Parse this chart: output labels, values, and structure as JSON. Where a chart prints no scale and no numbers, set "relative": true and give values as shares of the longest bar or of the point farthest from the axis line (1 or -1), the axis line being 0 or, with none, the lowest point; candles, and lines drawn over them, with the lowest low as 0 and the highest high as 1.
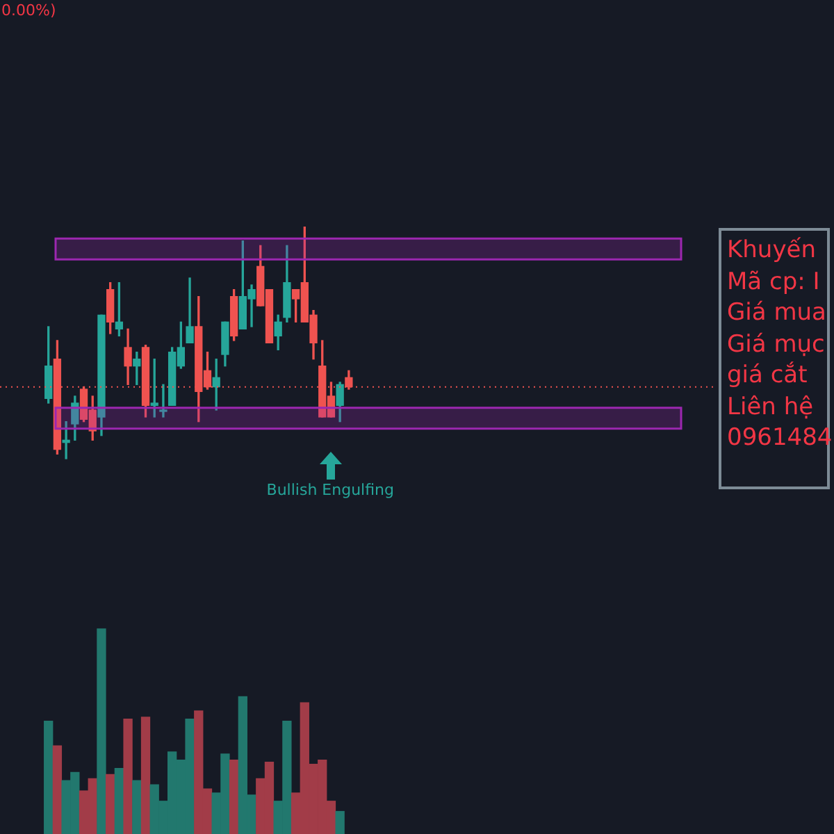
{
  "chart_data": [
    {
      "type": "candlestick",
      "relative": true,
      "categories": [
        null,
        null,
        null,
        null,
        null,
        null,
        null,
        null,
        null,
        null,
        null,
        null,
        null,
        null,
        null,
        null,
        null,
        null,
        null,
        null,
        null,
        null,
        null,
        null,
        null,
        null,
        null,
        null,
        null,
        null,
        null,
        null,
        null,
        null,
        null
      ],
      "ohlc": [
        [
          0.26,
          0.57,
          0.24,
          0.4
        ],
        [
          0.43,
          0.51,
          0.02,
          0.04
        ],
        [
          0.07,
          0.16,
          0,
          0.08
        ],
        [
          0.15,
          0.27,
          0.08,
          0.24
        ],
        [
          0.3,
          0.31,
          0.16,
          0.17
        ],
        [
          0.21,
          0.27,
          0.08,
          0.12
        ],
        [
          0.18,
          0.62,
          0.1,
          0.62
        ],
        [
          0.73,
          0.76,
          0.54,
          0.59
        ],
        [
          0.56,
          0.76,
          0.53,
          0.59
        ],
        [
          0.48,
          0.56,
          0.32,
          0.4
        ],
        [
          0.4,
          0.46,
          0.32,
          0.43
        ],
        [
          0.48,
          0.49,
          0.18,
          0.23
        ],
        [
          0.23,
          0.43,
          0.18,
          0.24
        ],
        [
          0.21,
          0.32,
          0.18,
          0.21
        ],
        [
          0.23,
          0.48,
          0.23,
          0.46
        ],
        [
          0.4,
          0.59,
          0.39,
          0.48
        ],
        [
          0.5,
          0.78,
          0.5,
          0.57
        ],
        [
          0.57,
          0.7,
          0.16,
          0.29
        ],
        [
          0.38,
          0.46,
          0.3,
          0.31
        ],
        [
          0.31,
          0.43,
          0.21,
          0.35
        ],
        [
          0.45,
          0.59,
          0.4,
          0.59
        ],
        [
          0.7,
          0.73,
          0.51,
          0.53
        ],
        [
          0.56,
          0.94,
          0.56,
          0.7
        ],
        [
          0.69,
          0.75,
          0.57,
          0.73
        ],
        [
          0.83,
          0.92,
          0.66,
          0.66
        ],
        [
          0.73,
          0.73,
          0.5,
          0.5
        ],
        [
          0.53,
          0.62,
          0.47,
          0.59
        ],
        [
          0.61,
          0.92,
          0.59,
          0.76
        ],
        [
          0.73,
          0.73,
          0.59,
          0.69
        ],
        [
          0.76,
          1,
          0.59,
          0.59
        ],
        [
          0.62,
          0.64,
          0.43,
          0.5
        ],
        [
          0.4,
          0.51,
          0.18,
          0.18
        ],
        [
          0.27,
          0.33,
          0.18,
          0.18
        ],
        [
          0.23,
          0.33,
          0.16,
          0.32
        ],
        [
          0.35,
          0.38,
          0.3,
          0.31
        ]
      ],
      "colors": [
        "#26a69a",
        "#ef5350",
        "#26a69a",
        "#26a69a",
        "#ef5350",
        "#ef5350",
        "#26a69a",
        "#ef5350",
        "#26a69a",
        "#ef5350",
        "#26a69a",
        "#ef5350",
        "#26a69a",
        "#26a69a",
        "#26a69a",
        "#26a69a",
        "#26a69a",
        "#ef5350",
        "#ef5350",
        "#26a69a",
        "#26a69a",
        "#ef5350",
        "#26a69a",
        "#26a69a",
        "#ef5350",
        "#ef5350",
        "#26a69a",
        "#26a69a",
        "#ef5350",
        "#ef5350",
        "#ef5350",
        "#ef5350",
        "#ef5350",
        "#26a69a",
        "#ef5350"
      ],
      "bands": [
        {
          "axis": "y",
          "from": 0.86,
          "to": 0.95,
          "color": "#9c27b0"
        },
        {
          "axis": "y",
          "from": 0.13,
          "to": 0.22,
          "color": "#9c27b0"
        }
      ],
      "ref_lines": [
        {
          "axis": "y",
          "value": 0.31,
          "color": "#ef5350",
          "line_style": "dotted"
        }
      ],
      "annotations": [
        "0.00%)",
        "Bullish Engulfing",
        "Khuyến\nMã cp: I\nGiá mua\nGiá mục\ngiá cắt\nLiên hệ\n0961484"
      ]
    },
    {
      "type": "bar",
      "relative": true,
      "categories": [
        null,
        null,
        null,
        null,
        null,
        null,
        null,
        null,
        null,
        null,
        null,
        null,
        null,
        null,
        null,
        null,
        null,
        null,
        null,
        null,
        null,
        null,
        null,
        null,
        null,
        null,
        null,
        null,
        null,
        null,
        null,
        null,
        null,
        null,
        null
      ],
      "values": [
        0.55,
        0.43,
        0.26,
        0.3,
        0.21,
        0.27,
        1,
        0.29,
        0.32,
        0.56,
        0.26,
        0.57,
        0.24,
        0.16,
        0.4,
        0.36,
        0.56,
        0.6,
        0.22,
        0.2,
        0.39,
        0.36,
        0.67,
        0.19,
        0.27,
        0.35,
        0.16,
        0.55,
        0.2,
        0.64,
        0.34,
        0.36,
        0.16,
        0.11,
        null
      ],
      "colors": [
        "#22786e",
        "#a23c48",
        "#22786e",
        "#22786e",
        "#a23c48",
        "#a23c48",
        "#22786e",
        "#a23c48",
        "#22786e",
        "#a23c48",
        "#22786e",
        "#a23c48",
        "#22786e",
        "#22786e",
        "#22786e",
        "#22786e",
        "#22786e",
        "#a23c48",
        "#a23c48",
        "#22786e",
        "#22786e",
        "#a23c48",
        "#22786e",
        "#22786e",
        "#a23c48",
        "#a23c48",
        "#22786e",
        "#22786e",
        "#a23c48",
        "#a23c48",
        "#a23c48",
        "#a23c48",
        "#a23c48",
        "#22786e",
        "#a23c48"
      ]
    }
  ]
}
